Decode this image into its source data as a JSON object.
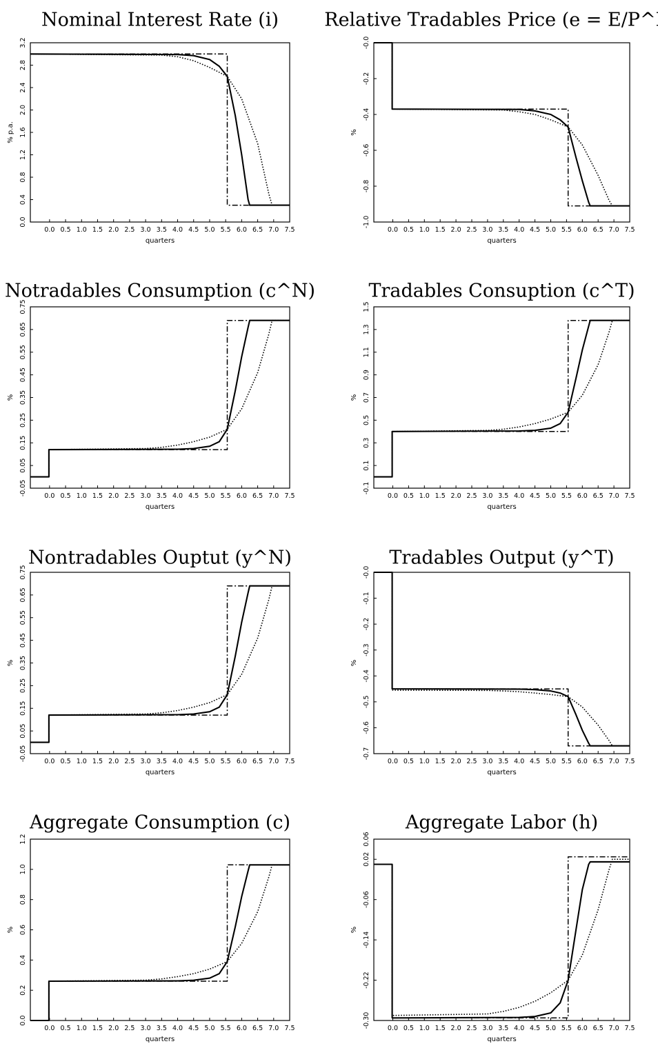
{
  "chart_data": [
    {
      "type": "line",
      "title": "Nominal Interest Rate (i)",
      "xlabel": "quarters",
      "ylabel": "% p.a.",
      "xlim": [
        -0.6,
        7.5
      ],
      "ylim": [
        0.0,
        3.2
      ],
      "xticks": [
        "0.0",
        "0.5",
        "1.0",
        "1.5",
        "2.0",
        "2.5",
        "3.0",
        "3.5",
        "4.0",
        "4.5",
        "5.0",
        "5.5",
        "6.0",
        "6.5",
        "7.0",
        "7.5"
      ],
      "yticks": [
        "0.0",
        "0.4",
        "0.8",
        "1.2",
        "1.6",
        "2.0",
        "2.4",
        "2.8",
        "3.2"
      ],
      "start": 3.0,
      "plateau": 3.0,
      "final": 0.3,
      "crossing": 2.6,
      "series": [
        {
          "style": "solid",
          "x": [
            -0.6,
            4.0,
            4.5,
            5.0,
            5.3,
            5.55,
            5.8,
            6.0,
            6.2,
            6.25,
            7.5
          ],
          "y": [
            3.0,
            2.99,
            2.97,
            2.9,
            2.78,
            2.6,
            1.9,
            1.2,
            0.4,
            0.3,
            0.3
          ]
        },
        {
          "style": "dotted",
          "x": [
            -0.6,
            3.5,
            4.0,
            4.5,
            5.0,
            5.55,
            6.0,
            6.5,
            6.85,
            6.95,
            7.5
          ],
          "y": [
            3.0,
            2.98,
            2.95,
            2.88,
            2.76,
            2.6,
            2.2,
            1.4,
            0.5,
            0.3,
            0.3
          ]
        },
        {
          "style": "dashdot",
          "x": [
            -0.6,
            5.55,
            5.55,
            7.5
          ],
          "y": [
            3.0,
            3.0,
            0.3,
            0.3
          ]
        }
      ]
    },
    {
      "type": "line",
      "title": "Relative Tradables Price (e = E/P^N)",
      "xlabel": "quarters",
      "ylabel": "%",
      "xlim": [
        -0.6,
        7.5
      ],
      "ylim": [
        -1.0,
        0.0
      ],
      "xticks": [
        "0.0",
        "0.5",
        "1.0",
        "1.5",
        "2.0",
        "2.5",
        "3.0",
        "3.5",
        "4.0",
        "4.5",
        "5.0",
        "5.5",
        "6.0",
        "6.5",
        "7.0",
        "7.5"
      ],
      "yticks": [
        "-1.0",
        "-0.8",
        "-0.6",
        "-0.4",
        "-0.2",
        "-0.0"
      ],
      "start": 0.0,
      "plateau": -0.37,
      "final": -0.91,
      "crossing": -0.47,
      "series": [
        {
          "style": "solid",
          "x": [
            -0.6,
            -0.02,
            -0.02,
            4.0,
            4.5,
            5.0,
            5.3,
            5.55,
            5.8,
            6.0,
            6.2,
            6.25,
            7.5
          ],
          "y": [
            0.0,
            0.0,
            -0.37,
            -0.372,
            -0.38,
            -0.4,
            -0.43,
            -0.47,
            -0.64,
            -0.77,
            -0.89,
            -0.91,
            -0.91
          ]
        },
        {
          "style": "dotted",
          "x": [
            -0.6,
            -0.02,
            -0.02,
            3.5,
            4.0,
            4.5,
            5.0,
            5.55,
            6.0,
            6.5,
            6.85,
            6.95,
            7.5
          ],
          "y": [
            0.0,
            0.0,
            -0.37,
            -0.375,
            -0.385,
            -0.4,
            -0.43,
            -0.47,
            -0.57,
            -0.74,
            -0.88,
            -0.91,
            -0.91
          ]
        },
        {
          "style": "dashdot",
          "x": [
            -0.6,
            -0.02,
            -0.02,
            5.55,
            5.55,
            7.5
          ],
          "y": [
            0.0,
            0.0,
            -0.37,
            -0.37,
            -0.91,
            -0.91
          ]
        }
      ]
    },
    {
      "type": "line",
      "title": "Notradables Consumption (c^N)",
      "xlabel": "quarters",
      "ylabel": "%",
      "xlim": [
        -0.6,
        7.5
      ],
      "ylim": [
        -0.05,
        0.75
      ],
      "xticks": [
        "0.0",
        "0.5",
        "1.0",
        "1.5",
        "2.0",
        "2.5",
        "3.0",
        "3.5",
        "4.0",
        "4.5",
        "5.0",
        "5.5",
        "6.0",
        "6.5",
        "7.0",
        "7.5"
      ],
      "yticks": [
        "-0.05",
        "0.05",
        "0.15",
        "0.25",
        "0.35",
        "0.45",
        "0.55",
        "0.65",
        "0.75"
      ],
      "start": 0.0,
      "plateau": 0.12,
      "final": 0.69,
      "crossing": 0.21,
      "series": [
        {
          "style": "solid",
          "x": [
            -0.6,
            -0.02,
            -0.02,
            4.0,
            4.5,
            5.0,
            5.3,
            5.55,
            5.8,
            6.0,
            6.2,
            6.25,
            7.5
          ],
          "y": [
            0.0,
            0.0,
            0.12,
            0.122,
            0.125,
            0.135,
            0.155,
            0.21,
            0.38,
            0.53,
            0.66,
            0.69,
            0.69
          ]
        },
        {
          "style": "dotted",
          "x": [
            -0.6,
            -0.02,
            -0.02,
            3.0,
            3.5,
            4.0,
            4.5,
            5.0,
            5.55,
            6.0,
            6.5,
            6.85,
            6.95,
            7.5
          ],
          "y": [
            0.0,
            0.0,
            0.12,
            0.125,
            0.13,
            0.14,
            0.155,
            0.175,
            0.21,
            0.3,
            0.46,
            0.63,
            0.69,
            0.69
          ]
        },
        {
          "style": "dashdot",
          "x": [
            -0.6,
            -0.02,
            -0.02,
            5.55,
            5.55,
            7.5
          ],
          "y": [
            0.0,
            0.0,
            0.12,
            0.12,
            0.69,
            0.69
          ]
        }
      ]
    },
    {
      "type": "line",
      "title": "Tradables Consuption (c^T)",
      "xlabel": "quarters",
      "ylabel": "%",
      "xlim": [
        -0.6,
        7.5
      ],
      "ylim": [
        -0.1,
        1.5
      ],
      "xticks": [
        "0.0",
        "0.5",
        "1.0",
        "1.5",
        "2.0",
        "2.5",
        "3.0",
        "3.5",
        "4.0",
        "4.5",
        "5.0",
        "5.5",
        "6.0",
        "6.5",
        "7.0",
        "7.5"
      ],
      "yticks": [
        "-0.1",
        "0.1",
        "0.3",
        "0.5",
        "0.7",
        "0.9",
        "1.1",
        "1.3",
        "1.5"
      ],
      "start": 0.0,
      "plateau": 0.4,
      "final": 1.38,
      "crossing": 0.57,
      "series": [
        {
          "style": "solid",
          "x": [
            -0.6,
            -0.02,
            -0.02,
            4.0,
            4.5,
            5.0,
            5.3,
            5.55,
            5.8,
            6.0,
            6.2,
            6.25,
            7.5
          ],
          "y": [
            0.0,
            0.0,
            0.4,
            0.405,
            0.41,
            0.43,
            0.47,
            0.57,
            0.87,
            1.12,
            1.33,
            1.38,
            1.38
          ]
        },
        {
          "style": "dotted",
          "x": [
            -0.6,
            -0.02,
            -0.02,
            3.0,
            3.5,
            4.0,
            4.5,
            5.0,
            5.55,
            6.0,
            6.5,
            6.85,
            6.95,
            7.5
          ],
          "y": [
            0.0,
            0.0,
            0.4,
            0.41,
            0.42,
            0.44,
            0.47,
            0.51,
            0.57,
            0.72,
            0.99,
            1.28,
            1.38,
            1.38
          ]
        },
        {
          "style": "dashdot",
          "x": [
            -0.6,
            -0.02,
            -0.02,
            5.55,
            5.55,
            7.5
          ],
          "y": [
            0.0,
            0.0,
            0.4,
            0.4,
            1.38,
            1.38
          ]
        }
      ]
    },
    {
      "type": "line",
      "title": "Nontradables Ouptut (y^N)",
      "xlabel": "quarters",
      "ylabel": "%",
      "xlim": [
        -0.6,
        7.5
      ],
      "ylim": [
        -0.05,
        0.75
      ],
      "xticks": [
        "0.0",
        "0.5",
        "1.0",
        "1.5",
        "2.0",
        "2.5",
        "3.0",
        "3.5",
        "4.0",
        "4.5",
        "5.0",
        "5.5",
        "6.0",
        "6.5",
        "7.0",
        "7.5"
      ],
      "yticks": [
        "-0.05",
        "0.05",
        "0.15",
        "0.25",
        "0.35",
        "0.45",
        "0.55",
        "0.65",
        "0.75"
      ],
      "start": 0.0,
      "plateau": 0.12,
      "final": 0.69,
      "crossing": 0.21,
      "series": [
        {
          "style": "solid",
          "x": [
            -0.6,
            -0.02,
            -0.02,
            4.0,
            4.5,
            5.0,
            5.3,
            5.55,
            5.8,
            6.0,
            6.2,
            6.25,
            7.5
          ],
          "y": [
            0.0,
            0.0,
            0.12,
            0.122,
            0.125,
            0.135,
            0.155,
            0.21,
            0.38,
            0.53,
            0.66,
            0.69,
            0.69
          ]
        },
        {
          "style": "dotted",
          "x": [
            -0.6,
            -0.02,
            -0.02,
            3.0,
            3.5,
            4.0,
            4.5,
            5.0,
            5.55,
            6.0,
            6.5,
            6.85,
            6.95,
            7.5
          ],
          "y": [
            0.0,
            0.0,
            0.12,
            0.125,
            0.13,
            0.14,
            0.155,
            0.175,
            0.21,
            0.3,
            0.46,
            0.63,
            0.69,
            0.69
          ]
        },
        {
          "style": "dashdot",
          "x": [
            -0.6,
            -0.02,
            -0.02,
            5.55,
            5.55,
            7.5
          ],
          "y": [
            0.0,
            0.0,
            0.12,
            0.12,
            0.69,
            0.69
          ]
        }
      ]
    },
    {
      "type": "line",
      "title": "Tradables Output (y^T)",
      "xlabel": "quarters",
      "ylabel": "%",
      "xlim": [
        -0.6,
        7.5
      ],
      "ylim": [
        -0.7,
        0.0
      ],
      "xticks": [
        "0.0",
        "0.5",
        "1.0",
        "1.5",
        "2.0",
        "2.5",
        "3.0",
        "3.5",
        "4.0",
        "4.5",
        "5.0",
        "5.5",
        "6.0",
        "6.5",
        "7.0",
        "7.5"
      ],
      "yticks": [
        "-0.7",
        "-0.6",
        "-0.5",
        "-0.4",
        "-0.3",
        "-0.2",
        "-0.1",
        "-0.0"
      ],
      "start": 0.0,
      "plateau": -0.45,
      "final": -0.67,
      "crossing": -0.48,
      "series": [
        {
          "style": "solid",
          "x": [
            -0.6,
            -0.02,
            -0.02,
            4.0,
            4.5,
            5.0,
            5.3,
            5.55,
            5.8,
            6.0,
            6.2,
            6.25,
            7.5
          ],
          "y": [
            0.0,
            0.0,
            -0.45,
            -0.451,
            -0.453,
            -0.458,
            -0.466,
            -0.48,
            -0.55,
            -0.61,
            -0.66,
            -0.67,
            -0.67
          ]
        },
        {
          "style": "dotted",
          "x": [
            -0.6,
            -0.02,
            -0.02,
            3.0,
            3.5,
            4.0,
            4.5,
            5.0,
            5.55,
            6.0,
            6.5,
            6.85,
            6.95,
            7.5
          ],
          "y": [
            0.0,
            0.0,
            -0.455,
            -0.456,
            -0.458,
            -0.461,
            -0.466,
            -0.472,
            -0.48,
            -0.52,
            -0.59,
            -0.65,
            -0.67,
            -0.67
          ]
        },
        {
          "style": "dashdot",
          "x": [
            -0.6,
            -0.02,
            -0.02,
            5.55,
            5.55,
            7.5
          ],
          "y": [
            0.0,
            0.0,
            -0.45,
            -0.45,
            -0.67,
            -0.67
          ]
        }
      ]
    },
    {
      "type": "line",
      "title": "Aggregate Consumption (c)",
      "xlabel": "quarters",
      "ylabel": "%",
      "xlim": [
        -0.6,
        7.5
      ],
      "ylim": [
        0.0,
        1.2
      ],
      "xticks": [
        "0.0",
        "0.5",
        "1.0",
        "1.5",
        "2.0",
        "2.5",
        "3.0",
        "3.5",
        "4.0",
        "4.5",
        "5.0",
        "5.5",
        "6.0",
        "6.5",
        "7.0",
        "7.5"
      ],
      "yticks": [
        "0.0",
        "0.2",
        "0.4",
        "0.6",
        "0.8",
        "1.0",
        "1.2"
      ],
      "start": 0.0,
      "plateau": 0.26,
      "final": 1.03,
      "crossing": 0.39,
      "series": [
        {
          "style": "solid",
          "x": [
            -0.6,
            -0.02,
            -0.02,
            4.0,
            4.5,
            5.0,
            5.3,
            5.55,
            5.8,
            6.0,
            6.2,
            6.25,
            7.5
          ],
          "y": [
            0.0,
            0.0,
            0.26,
            0.262,
            0.266,
            0.28,
            0.31,
            0.39,
            0.62,
            0.82,
            0.99,
            1.03,
            1.03
          ]
        },
        {
          "style": "dotted",
          "x": [
            -0.6,
            -0.02,
            -0.02,
            3.0,
            3.5,
            4.0,
            4.5,
            5.0,
            5.55,
            6.0,
            6.5,
            6.85,
            6.95,
            7.5
          ],
          "y": [
            0.0,
            0.0,
            0.26,
            0.267,
            0.275,
            0.29,
            0.31,
            0.34,
            0.39,
            0.51,
            0.72,
            0.95,
            1.03,
            1.03
          ]
        },
        {
          "style": "dashdot",
          "x": [
            -0.6,
            -0.02,
            -0.02,
            5.55,
            5.55,
            7.5
          ],
          "y": [
            0.0,
            0.0,
            0.26,
            0.26,
            1.03,
            1.03
          ]
        }
      ]
    },
    {
      "type": "line",
      "title": "Aggregate Labor (h)",
      "xlabel": "quarters",
      "ylabel": "%",
      "xlim": [
        -0.6,
        7.5
      ],
      "ylim": [
        -0.3,
        0.06
      ],
      "xticks": [
        "0.0",
        "0.5",
        "1.0",
        "1.5",
        "2.0",
        "2.5",
        "3.0",
        "3.5",
        "4.0",
        "4.5",
        "5.0",
        "5.5",
        "6.0",
        "6.5",
        "7.0",
        "7.5"
      ],
      "yticks": [
        "-0.30",
        "-0.22",
        "-0.14",
        "-0.06",
        "0.02",
        "0.06"
      ],
      "start": 0.01,
      "plateau": -0.295,
      "final": 0.015,
      "crossing": -0.22,
      "series": [
        {
          "style": "solid",
          "x": [
            -0.6,
            -0.02,
            -0.02,
            4.0,
            4.5,
            5.0,
            5.3,
            5.55,
            5.8,
            6.0,
            6.2,
            6.25,
            7.5
          ],
          "y": [
            0.01,
            0.01,
            -0.295,
            -0.294,
            -0.292,
            -0.285,
            -0.265,
            -0.22,
            -0.12,
            -0.04,
            0.01,
            0.015,
            0.015
          ]
        },
        {
          "style": "dotted",
          "x": [
            -0.6,
            -0.02,
            -0.02,
            3.0,
            3.5,
            4.0,
            4.5,
            5.0,
            5.55,
            6.0,
            6.5,
            6.85,
            6.95,
            7.5
          ],
          "y": [
            0.01,
            0.01,
            -0.29,
            -0.287,
            -0.282,
            -0.274,
            -0.262,
            -0.245,
            -0.22,
            -0.17,
            -0.08,
            0.0,
            0.02,
            0.02
          ]
        },
        {
          "style": "dashdot",
          "x": [
            -0.6,
            -0.02,
            -0.02,
            5.55,
            5.55,
            7.5
          ],
          "y": [
            0.01,
            0.01,
            -0.295,
            -0.295,
            0.025,
            0.025
          ]
        }
      ]
    }
  ]
}
